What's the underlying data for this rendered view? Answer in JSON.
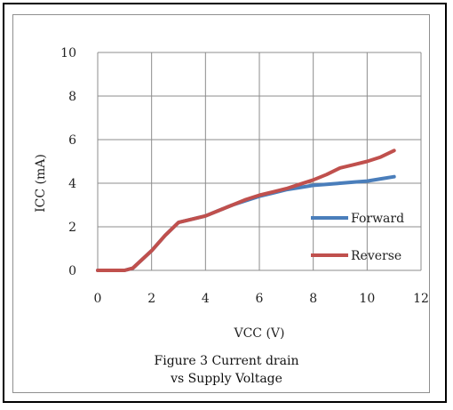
{
  "chart_data": {
    "type": "line",
    "xlabel": "VCC (V)",
    "ylabel": "ICC (mA)",
    "xlim": [
      0,
      12
    ],
    "ylim": [
      0,
      10
    ],
    "xticks": [
      "0",
      "2",
      "4",
      "6",
      "8",
      "10",
      "12"
    ],
    "yticks": [
      "0",
      "2",
      "4",
      "6",
      "8",
      "10"
    ],
    "grid": true,
    "legend_position": "right",
    "series": [
      {
        "name": "Forward",
        "color": "#4a7ebb",
        "x": [
          0,
          0.5,
          1,
          1.3,
          2,
          2.5,
          3,
          3.5,
          4,
          4.5,
          5,
          5.5,
          6,
          6.5,
          7,
          7.5,
          8,
          8.5,
          9,
          9.5,
          10,
          10.5,
          11
        ],
        "y": [
          0,
          0,
          0,
          0.1,
          0.9,
          1.6,
          2.2,
          2.35,
          2.5,
          2.75,
          3.0,
          3.2,
          3.4,
          3.55,
          3.7,
          3.8,
          3.9,
          3.95,
          4.0,
          4.05,
          4.1,
          4.2,
          4.3
        ]
      },
      {
        "name": "Reverse",
        "color": "#c0504d",
        "x": [
          0,
          0.5,
          1,
          1.3,
          2,
          2.5,
          3,
          3.5,
          4,
          4.5,
          5,
          5.5,
          6,
          6.5,
          7,
          7.5,
          8,
          8.5,
          9,
          9.5,
          10,
          10.5,
          11
        ],
        "y": [
          0,
          0,
          0,
          0.1,
          0.9,
          1.6,
          2.2,
          2.35,
          2.5,
          2.75,
          3.0,
          3.25,
          3.45,
          3.6,
          3.75,
          3.95,
          4.15,
          4.4,
          4.7,
          4.85,
          5.0,
          5.2,
          5.5
        ]
      }
    ]
  },
  "caption": {
    "line1": "Figure 3  Current drain",
    "line2": "vs Supply Voltage"
  }
}
